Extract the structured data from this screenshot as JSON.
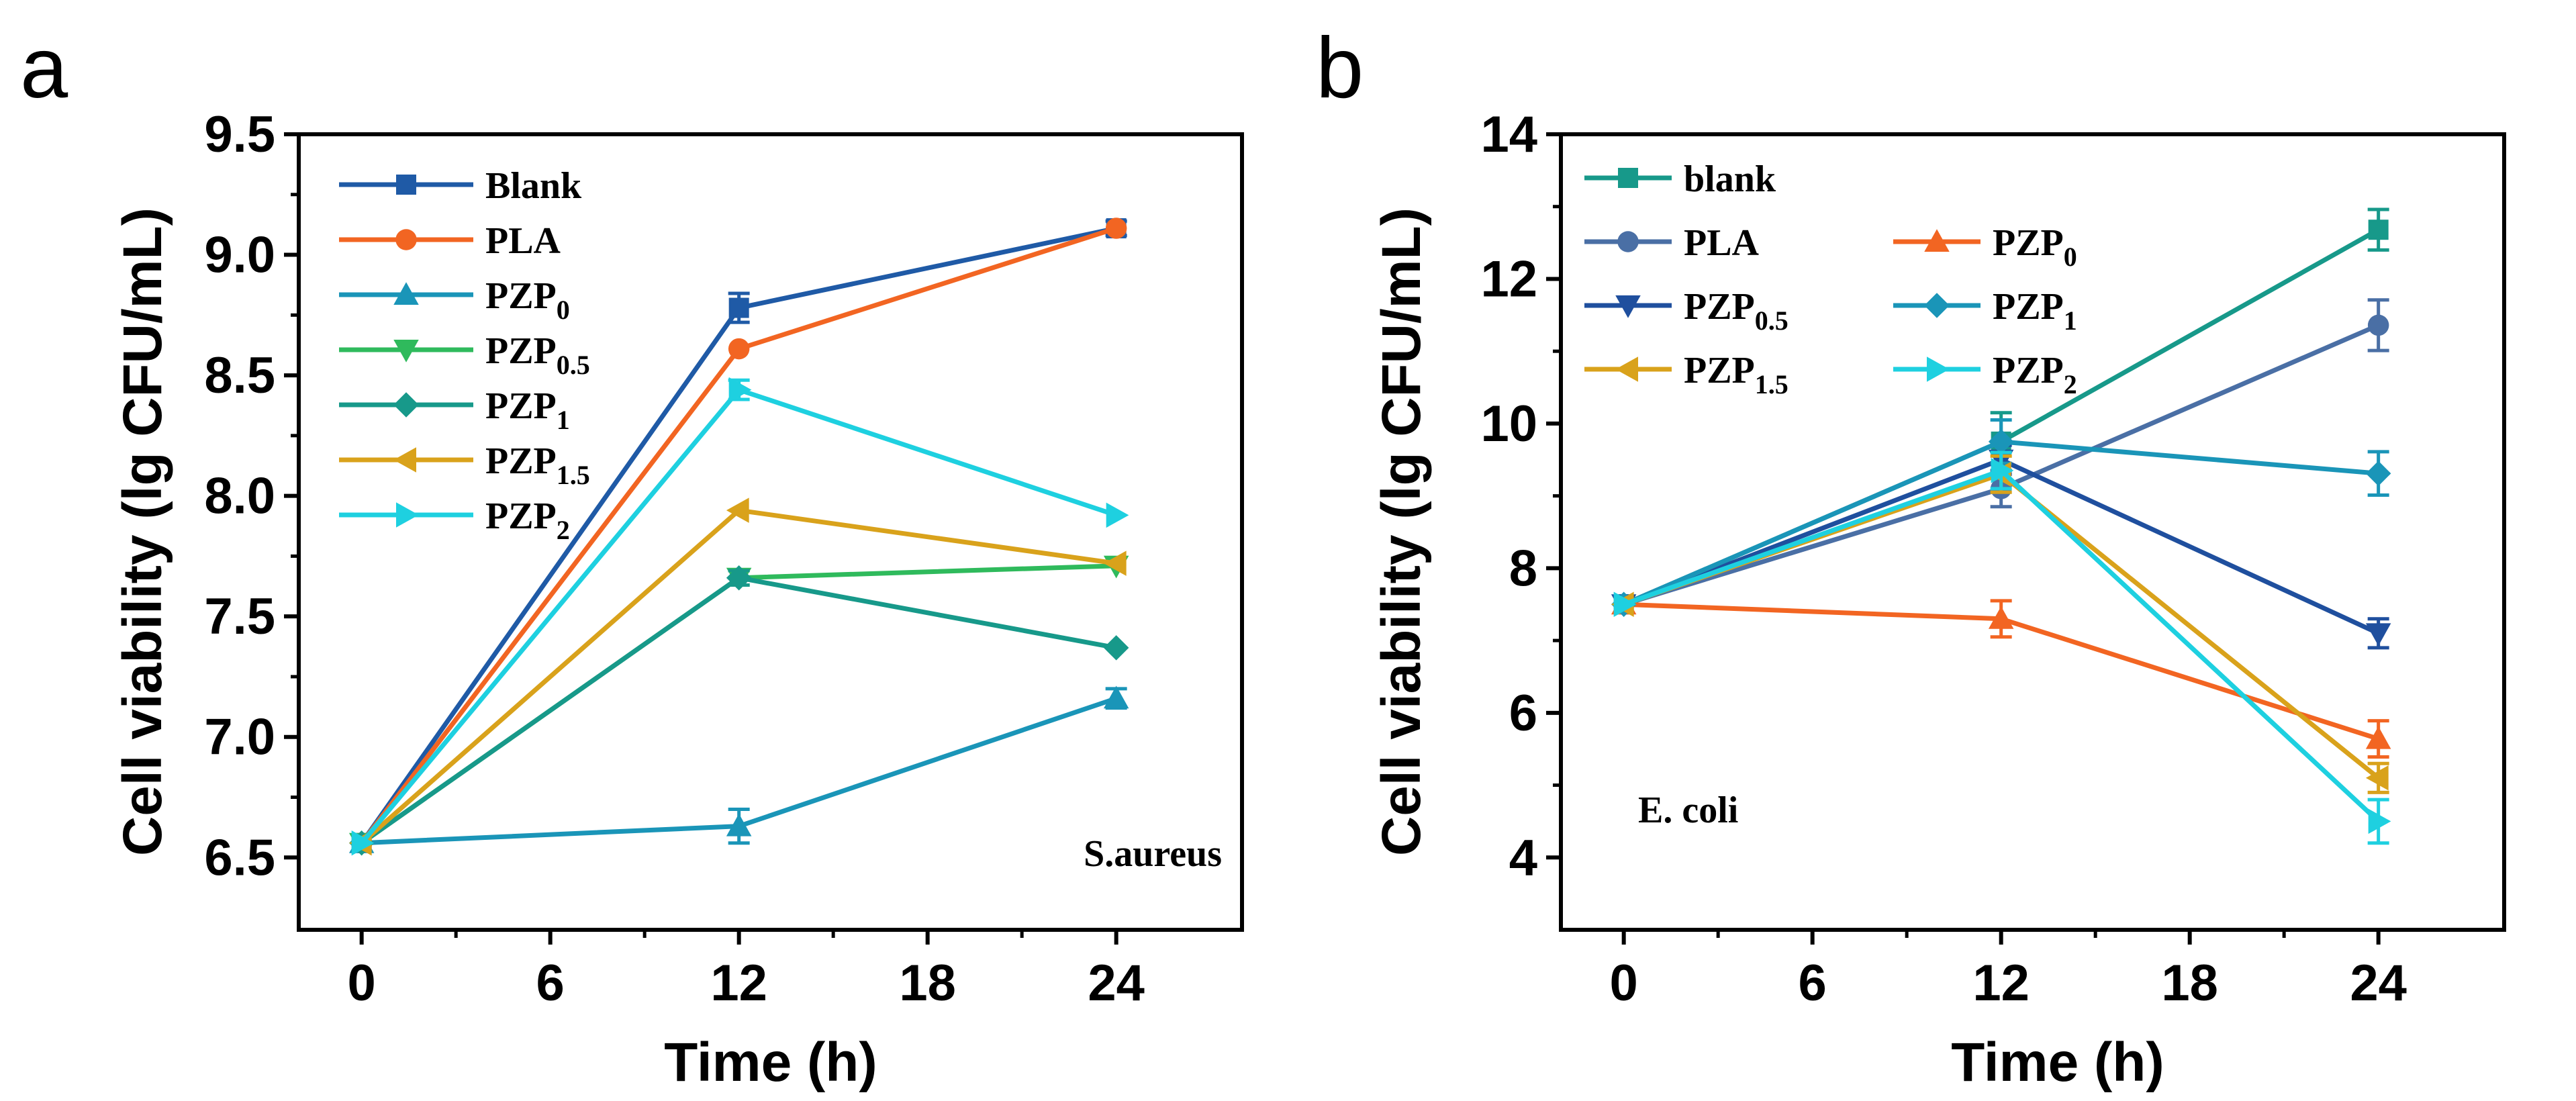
{
  "chart_data": [
    {
      "type": "line",
      "panel_label": "a",
      "annotation": "S.aureus",
      "xlabel": "Time (h)",
      "ylabel": "Cell viability (lg CFU/mL)",
      "xlim": [
        -2,
        28
      ],
      "ylim": [
        6.2,
        9.5
      ],
      "xticks": [
        0,
        6,
        12,
        18,
        24
      ],
      "yticks": [
        6.5,
        7.0,
        7.5,
        8.0,
        8.5,
        9.0,
        9.5
      ],
      "ytick_labels": [
        "6.5",
        "7.0",
        "7.5",
        "8.0",
        "8.5",
        "9.0",
        "9.5"
      ],
      "x": [
        0,
        12,
        24
      ],
      "legend_position": "top-left",
      "series": [
        {
          "name": "Blank",
          "base": "Blank",
          "sub": "",
          "color": "#1f5aa6",
          "marker": "square",
          "values": [
            6.56,
            8.78,
            9.11
          ],
          "errors": [
            0,
            0.06,
            0.03
          ]
        },
        {
          "name": "PLA",
          "base": "PLA",
          "sub": "",
          "color": "#f26522",
          "marker": "circle",
          "values": [
            6.56,
            8.61,
            9.11
          ],
          "errors": [
            0,
            0,
            0
          ]
        },
        {
          "name": "PZP0",
          "base": "PZP",
          "sub": "0",
          "color": "#1a95b8",
          "marker": "triangle-up",
          "values": [
            6.56,
            6.63,
            7.16
          ],
          "errors": [
            0,
            0.07,
            0.04
          ]
        },
        {
          "name": "PZP0.5",
          "base": "PZP",
          "sub": "0.5",
          "color": "#2fba5c",
          "marker": "triangle-down",
          "values": [
            6.56,
            7.66,
            7.71
          ],
          "errors": [
            0,
            0.03,
            0
          ]
        },
        {
          "name": "PZP1",
          "base": "PZP",
          "sub": "1",
          "color": "#17998a",
          "marker": "diamond",
          "values": [
            6.56,
            7.66,
            7.37
          ],
          "errors": [
            0,
            0.03,
            0
          ]
        },
        {
          "name": "PZP1.5",
          "base": "PZP",
          "sub": "1.5",
          "color": "#d9a21b",
          "marker": "triangle-left",
          "values": [
            6.56,
            7.94,
            7.72
          ],
          "errors": [
            0,
            0,
            0
          ]
        },
        {
          "name": "PZP2",
          "base": "PZP",
          "sub": "2",
          "color": "#1ed0e0",
          "marker": "triangle-right",
          "values": [
            6.56,
            8.44,
            7.92
          ],
          "errors": [
            0,
            0.04,
            0
          ]
        }
      ]
    },
    {
      "type": "line",
      "panel_label": "b",
      "annotation": "E. coli",
      "xlabel": "Time (h)",
      "ylabel": "Cell viability (lg CFU/mL)",
      "xlim": [
        -2,
        28
      ],
      "ylim": [
        3,
        14
      ],
      "xticks": [
        0,
        6,
        12,
        18,
        24
      ],
      "yticks": [
        4,
        6,
        8,
        10,
        12,
        14
      ],
      "ytick_labels": [
        "4",
        "6",
        "8",
        "10",
        "12",
        "14"
      ],
      "x": [
        0,
        12,
        24
      ],
      "legend_position": "top-left",
      "series": [
        {
          "name": "blank",
          "base": "blank",
          "sub": "",
          "color": "#17998a",
          "marker": "square",
          "values": [
            7.5,
            9.75,
            12.68
          ],
          "errors": [
            0,
            0.4,
            0.28
          ]
        },
        {
          "name": "PLA",
          "base": "PLA",
          "sub": "",
          "color": "#4a6fa5",
          "marker": "circle",
          "values": [
            7.5,
            9.1,
            11.36
          ],
          "errors": [
            0,
            0.25,
            0.35
          ]
        },
        {
          "name": "PZP0",
          "base": "PZP",
          "sub": "0",
          "color": "#f26522",
          "marker": "triangle-up",
          "values": [
            7.5,
            7.3,
            5.64
          ],
          "errors": [
            0,
            0.25,
            0.25
          ]
        },
        {
          "name": "PZP0.5",
          "base": "PZP",
          "sub": "0.5",
          "color": "#1f4f9e",
          "marker": "triangle-down",
          "values": [
            7.5,
            9.5,
            7.1
          ],
          "errors": [
            0,
            0.2,
            0.2
          ]
        },
        {
          "name": "PZP1",
          "base": "PZP",
          "sub": "1",
          "color": "#1a95b8",
          "marker": "diamond",
          "values": [
            7.5,
            9.75,
            9.31
          ],
          "errors": [
            0,
            0.3,
            0.3
          ]
        },
        {
          "name": "PZP1.5",
          "base": "PZP",
          "sub": "1.5",
          "color": "#d9a21b",
          "marker": "triangle-left",
          "values": [
            7.5,
            9.3,
            5.1
          ],
          "errors": [
            0,
            0.25,
            0.2
          ]
        },
        {
          "name": "PZP2",
          "base": "PZP",
          "sub": "2",
          "color": "#1ed0e0",
          "marker": "triangle-right",
          "values": [
            7.5,
            9.35,
            4.5
          ],
          "errors": [
            0,
            0.25,
            0.3
          ]
        }
      ]
    }
  ]
}
